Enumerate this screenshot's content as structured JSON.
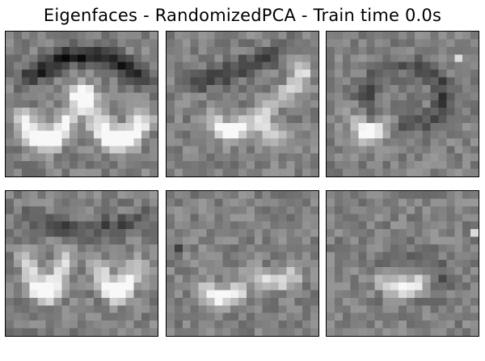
{
  "title": "Eigenfaces - RandomizedPCA - Train time 0.0s",
  "panels": [
    {
      "pattern": "wide-u-dark-top"
    },
    {
      "pattern": "s-curve-center-right"
    },
    {
      "pattern": "dark-ring-center"
    },
    {
      "pattern": "double-u-left"
    },
    {
      "pattern": "faint-loops"
    },
    {
      "pattern": "faint-central-blob"
    }
  ]
}
